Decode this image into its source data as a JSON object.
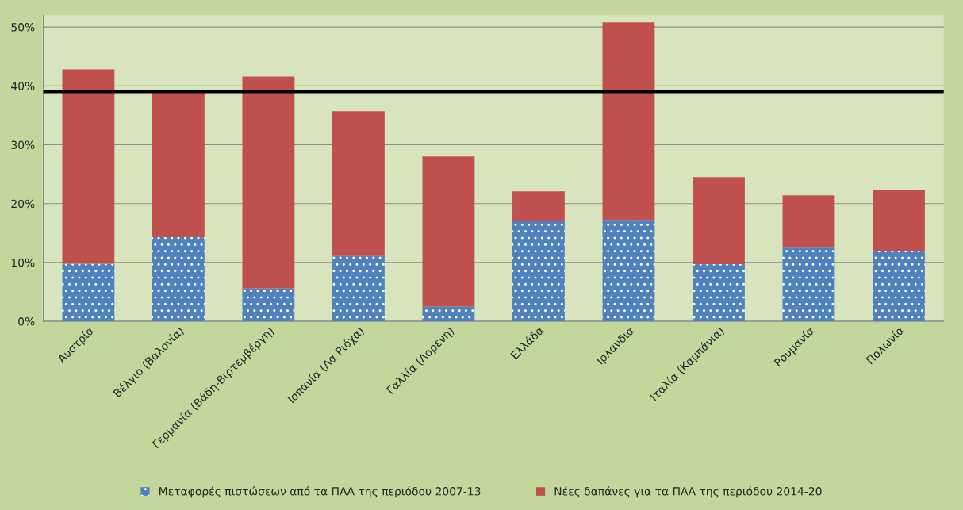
{
  "chart_data": {
    "type": "bar",
    "stacked": true,
    "categories": [
      "Αυστρία",
      "Βέλγιο (Βαλονία)",
      "Γερμανία (Βάδη-Βιρτεμβέργη)",
      "Ισπανία (Λα Ριόχα)",
      "Γαλλία (Λορένη)",
      "Ελλάδα",
      "Ιρλανδία",
      "Ιταλία (Καμπάνια)",
      "Ρουμανία",
      "Πολωνία"
    ],
    "series": [
      {
        "name": "Μεταφορές πιστώσεων από τα ΠΑΑ της περιόδου 2007-13",
        "color": "#4f81bd",
        "values": [
          9.8,
          14.3,
          5.6,
          11.1,
          2.5,
          17.0,
          17.1,
          9.7,
          12.5,
          12.0
        ]
      },
      {
        "name": "Νέες δαπάνες για τα ΠΑΑ της περιόδου 2014-20",
        "color": "#c0504d",
        "values": [
          33.0,
          24.6,
          36.0,
          24.6,
          25.5,
          5.1,
          33.7,
          14.8,
          8.9,
          10.3
        ]
      }
    ],
    "ylim": [
      0,
      52
    ],
    "yticks": [
      {
        "value": 0,
        "label": "0%"
      },
      {
        "value": 10,
        "label": "10%"
      },
      {
        "value": 20,
        "label": "20%"
      },
      {
        "value": 30,
        "label": "30%"
      },
      {
        "value": 40,
        "label": "40%"
      },
      {
        "value": 50,
        "label": "50%"
      }
    ],
    "ref_lines": [
      {
        "axis": "y",
        "value": 39,
        "color": "#000000",
        "line_style": "solid"
      }
    ],
    "grid": "y",
    "legend": "bottom"
  }
}
